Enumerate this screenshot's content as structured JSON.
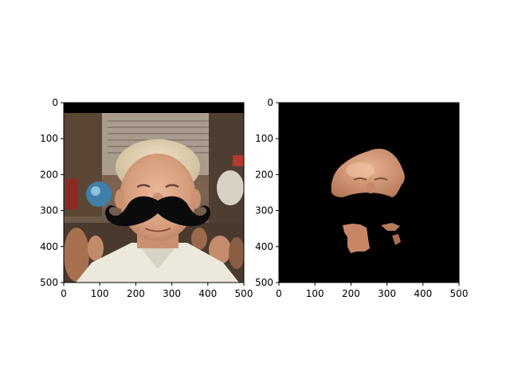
{
  "chart_data": [
    {
      "type": "image",
      "panel": "left",
      "content": "photo-face-with-mustache",
      "xlim": [
        0,
        500
      ],
      "ylim": [
        500,
        0
      ],
      "xticks": [
        0,
        100,
        200,
        300,
        400,
        500
      ],
      "yticks": [
        0,
        100,
        200,
        300,
        400,
        500
      ],
      "xtick_labels": [
        "0",
        "100",
        "200",
        "300",
        "400",
        "500"
      ],
      "ytick_labels": [
        "0",
        "100",
        "200",
        "300",
        "400",
        "500"
      ]
    },
    {
      "type": "image",
      "panel": "right",
      "content": "segmented-skin-mask",
      "xlim": [
        0,
        500
      ],
      "ylim": [
        500,
        0
      ],
      "xticks": [
        0,
        100,
        200,
        300,
        400,
        500
      ],
      "yticks": [
        0,
        100,
        200,
        300,
        400,
        500
      ],
      "xtick_labels": [
        "0",
        "100",
        "200",
        "300",
        "400",
        "500"
      ],
      "ytick_labels": [
        "0",
        "100",
        "200",
        "300",
        "400",
        "500"
      ]
    }
  ],
  "colors": {
    "background": "#000000",
    "skin": "#d39a74",
    "mustache": "#0b0b0b"
  }
}
